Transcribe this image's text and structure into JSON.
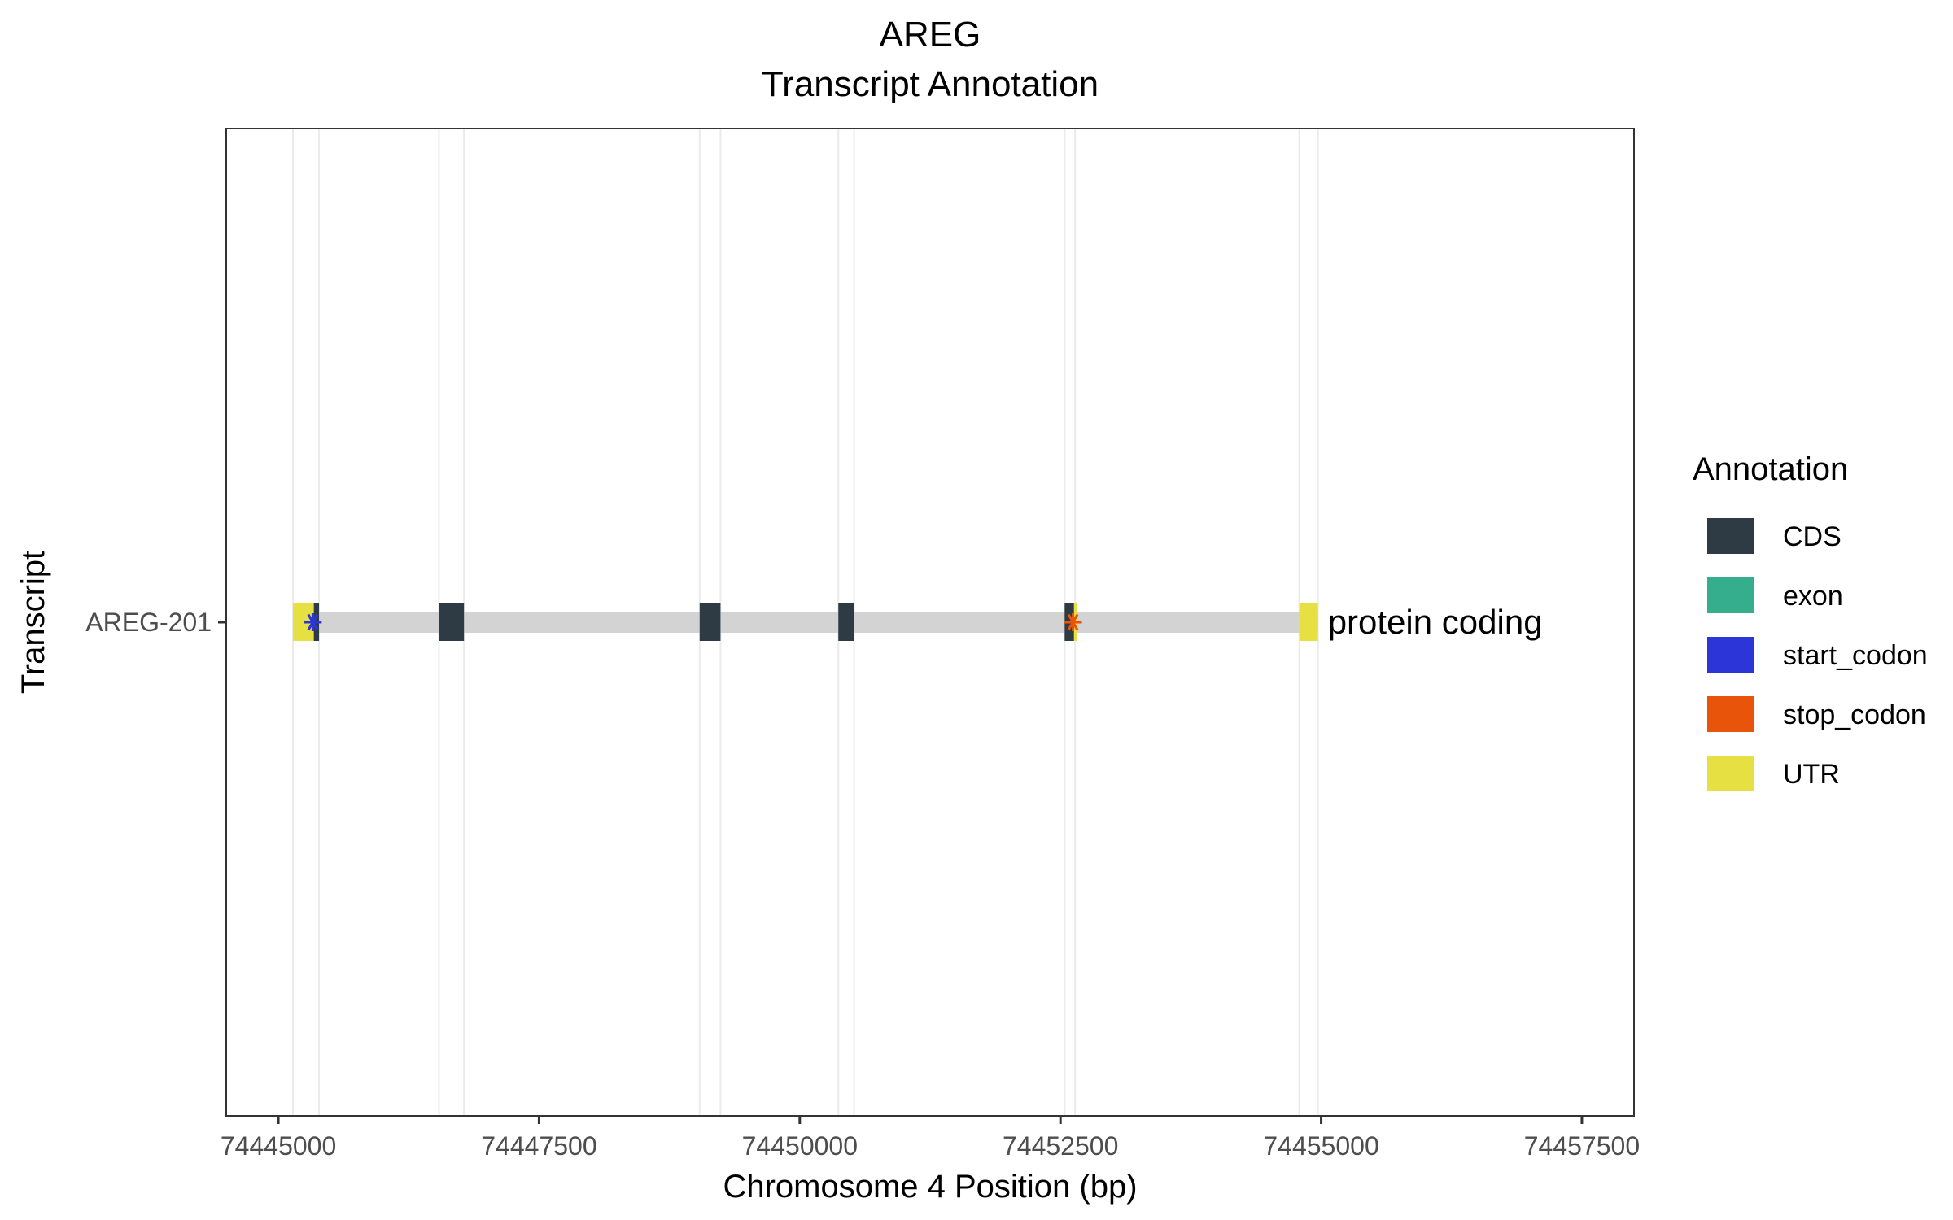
{
  "chart_data": {
    "type": "gene-track",
    "title": "AREG",
    "subtitle": "Transcript Annotation",
    "xlabel": "Chromosome 4 Position (bp)",
    "ylabel": "Transcript",
    "xlim": [
      74444500,
      74458000
    ],
    "x_ticks": [
      74445000,
      74447500,
      74450000,
      74452500,
      74455000,
      74457500
    ],
    "x_tick_labels": [
      "74445000",
      "74447500",
      "74450000",
      "74452500",
      "74455000",
      "74457500"
    ],
    "grid": true,
    "legend": {
      "title": "Annotation",
      "position": "right",
      "entries": [
        {
          "label": "CDS",
          "color": "#2e3b44"
        },
        {
          "label": "exon",
          "color": "#35ae8e"
        },
        {
          "label": "start_codon",
          "color": "#2b35d8"
        },
        {
          "label": "stop_codon",
          "color": "#e8540a"
        },
        {
          "label": "UTR",
          "color": "#e7e043"
        }
      ]
    },
    "transcripts": [
      {
        "name": "AREG-201",
        "biotype_label": "protein coding",
        "intron_color": "#d3d3d3",
        "start": 74445140,
        "end": 74454970,
        "features": [
          {
            "type": "UTR",
            "start": 74445140,
            "end": 74445340
          },
          {
            "type": "CDS",
            "start": 74445340,
            "end": 74445390
          },
          {
            "type": "CDS",
            "start": 74446540,
            "end": 74446780
          },
          {
            "type": "CDS",
            "start": 74449040,
            "end": 74449240
          },
          {
            "type": "CDS",
            "start": 74450370,
            "end": 74450520
          },
          {
            "type": "CDS",
            "start": 74452540,
            "end": 74452630
          },
          {
            "type": "UTR",
            "start": 74452630,
            "end": 74452660
          },
          {
            "type": "UTR",
            "start": 74454790,
            "end": 74454970
          }
        ],
        "start_codon": 74445330,
        "stop_codon": 74452620
      }
    ],
    "vertical_grid_lines": [
      74445140,
      74445390,
      74446540,
      74446780,
      74449040,
      74449240,
      74450370,
      74450520,
      74452540,
      74452640,
      74454790,
      74454970
    ]
  }
}
